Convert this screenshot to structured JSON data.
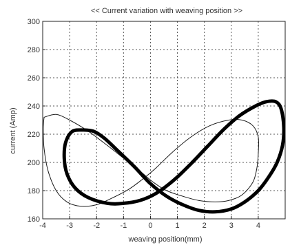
{
  "chart_data": {
    "type": "line",
    "title": "<< Current variation with weaving position >>",
    "xlabel": "weaving position(mm)",
    "ylabel": "current (Amp)",
    "xlim": [
      -4,
      5
    ],
    "ylim": [
      160,
      300
    ],
    "xticks": [
      -4,
      -3,
      -2,
      -1,
      0,
      1,
      2,
      3,
      4
    ],
    "yticks": [
      160,
      180,
      200,
      220,
      240,
      260,
      280,
      300
    ],
    "grid": true,
    "grid_style": "dotted",
    "series": [
      {
        "style": "thin",
        "color": "#1a1a1a",
        "points": [
          [
            -3.95,
            232
          ],
          [
            -3.5,
            234
          ],
          [
            -3.0,
            230
          ],
          [
            -2.3,
            222
          ],
          [
            -1.6,
            212
          ],
          [
            -1.0,
            203
          ],
          [
            -0.4,
            194
          ],
          [
            0.1,
            186
          ],
          [
            0.6,
            180
          ],
          [
            1.2,
            176
          ],
          [
            1.8,
            173
          ],
          [
            2.4,
            172
          ],
          [
            2.9,
            173
          ],
          [
            3.4,
            177
          ],
          [
            3.8,
            186
          ],
          [
            3.95,
            196
          ],
          [
            4.0,
            206
          ],
          [
            4.0,
            218
          ],
          [
            3.8,
            226
          ],
          [
            3.4,
            230
          ],
          [
            2.9,
            230
          ],
          [
            2.2,
            226
          ],
          [
            1.5,
            218
          ],
          [
            0.8,
            207
          ],
          [
            0.2,
            196
          ],
          [
            -0.3,
            188
          ],
          [
            -0.8,
            181
          ],
          [
            -1.4,
            175
          ],
          [
            -2.0,
            170
          ],
          [
            -2.6,
            169
          ],
          [
            -3.1,
            172
          ],
          [
            -3.5,
            180
          ],
          [
            -3.8,
            194
          ],
          [
            -3.95,
            210
          ],
          [
            -3.98,
            224
          ],
          [
            -3.95,
            232
          ]
        ]
      },
      {
        "style": "thick",
        "color": "#000000",
        "points": [
          [
            -2.5,
            223
          ],
          [
            -2.9,
            222
          ],
          [
            -3.15,
            214
          ],
          [
            -3.2,
            203
          ],
          [
            -3.1,
            192
          ],
          [
            -2.8,
            182
          ],
          [
            -2.3,
            175
          ],
          [
            -1.6,
            171
          ],
          [
            -1.0,
            171
          ],
          [
            -0.4,
            173
          ],
          [
            0.2,
            178
          ],
          [
            0.9,
            188
          ],
          [
            1.5,
            199
          ],
          [
            2.1,
            211
          ],
          [
            2.7,
            223
          ],
          [
            3.3,
            233
          ],
          [
            3.9,
            240
          ],
          [
            4.3,
            243
          ],
          [
            4.65,
            243
          ],
          [
            4.85,
            238
          ],
          [
            4.95,
            225
          ],
          [
            4.9,
            212
          ],
          [
            4.7,
            200
          ],
          [
            4.4,
            190
          ],
          [
            4.0,
            180
          ],
          [
            3.5,
            172
          ],
          [
            3.0,
            167
          ],
          [
            2.4,
            165
          ],
          [
            1.8,
            166
          ],
          [
            1.2,
            170
          ],
          [
            0.6,
            176
          ],
          [
            0.0,
            185
          ],
          [
            -0.6,
            197
          ],
          [
            -1.2,
            208
          ],
          [
            -1.7,
            217
          ],
          [
            -2.1,
            222
          ],
          [
            -2.5,
            223
          ]
        ]
      }
    ]
  }
}
